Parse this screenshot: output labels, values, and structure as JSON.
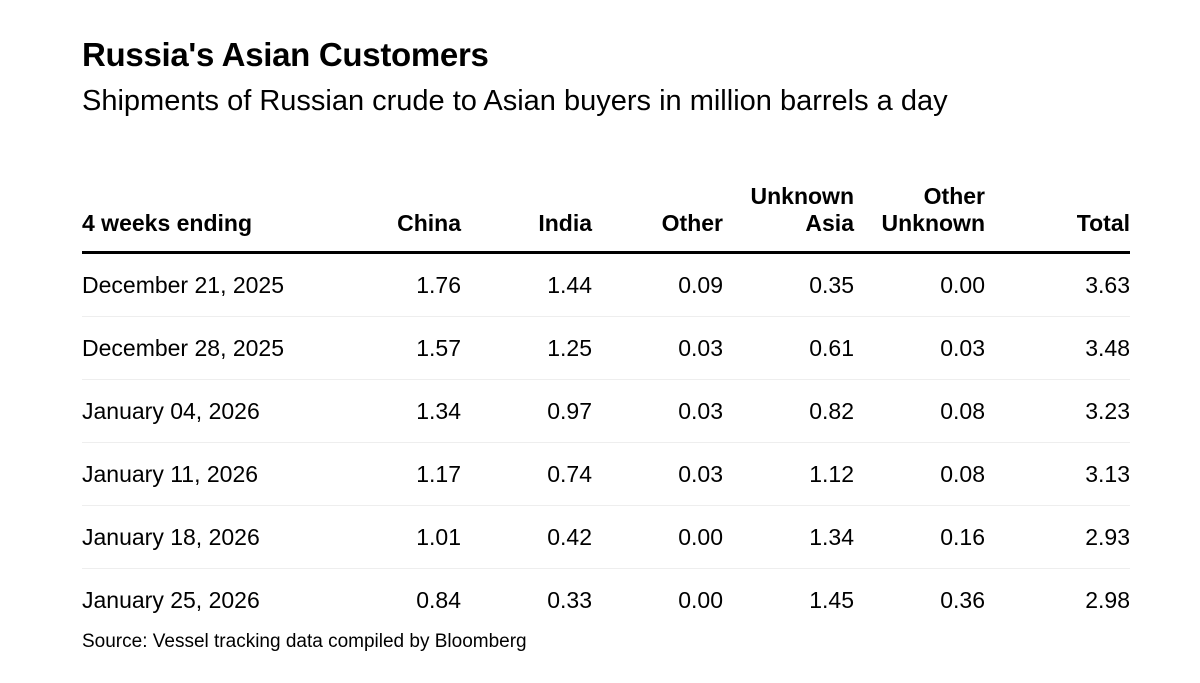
{
  "title": "Russia's Asian Customers",
  "subtitle": "Shipments of Russian crude to Asian buyers in million barrels a day",
  "source": "Source: Vessel tracking data compiled by Bloomberg",
  "chart_data": {
    "type": "table",
    "title": "Russia's Asian Customers",
    "subtitle": "Shipments of Russian crude to Asian buyers in million barrels a day",
    "columns": [
      "4 weeks ending",
      "China",
      "India",
      "Other",
      "Unknown Asia",
      "Other Unknown",
      "Total"
    ],
    "header_lines": [
      [
        "4 weeks ending"
      ],
      [
        "China"
      ],
      [
        "India"
      ],
      [
        "Other"
      ],
      [
        "Unknown",
        "Asia"
      ],
      [
        "Other",
        "Unknown"
      ],
      [
        "Total"
      ]
    ],
    "rows": [
      [
        "December 21, 2025",
        "1.76",
        "1.44",
        "0.09",
        "0.35",
        "0.00",
        "3.63"
      ],
      [
        "December 28, 2025",
        "1.57",
        "1.25",
        "0.03",
        "0.61",
        "0.03",
        "3.48"
      ],
      [
        "January 04, 2026",
        "1.34",
        "0.97",
        "0.03",
        "0.82",
        "0.08",
        "3.23"
      ],
      [
        "January 11, 2026",
        "1.17",
        "0.74",
        "0.03",
        "1.12",
        "0.08",
        "3.13"
      ],
      [
        "January 18, 2026",
        "1.01",
        "0.42",
        "0.00",
        "1.34",
        "0.16",
        "2.93"
      ],
      [
        "January 25, 2026",
        "0.84",
        "0.33",
        "0.00",
        "1.45",
        "0.36",
        "2.98"
      ]
    ],
    "source": "Source: Vessel tracking data compiled by Bloomberg"
  }
}
